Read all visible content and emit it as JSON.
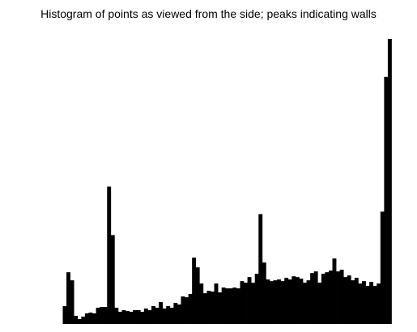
{
  "chart_data": {
    "type": "bar",
    "title": "Histogram of points as viewed from the side; peaks indicating walls",
    "xlabel": "",
    "ylabel": "",
    "axes_visible": false,
    "grid": false,
    "bar_color": "#000000",
    "ylim": [
      0,
      353
    ],
    "values": [
      22,
      64,
      54,
      10,
      6,
      9,
      13,
      14,
      13,
      20,
      21,
      21,
      170,
      110,
      20,
      15,
      17,
      16,
      15,
      17,
      17,
      15,
      19,
      17,
      22,
      20,
      27,
      19,
      22,
      20,
      26,
      24,
      34,
      33,
      37,
      82,
      70,
      50,
      38,
      41,
      40,
      50,
      39,
      45,
      44,
      44,
      45,
      44,
      53,
      51,
      58,
      51,
      62,
      136,
      76,
      55,
      53,
      54,
      55,
      53,
      57,
      55,
      59,
      58,
      56,
      51,
      54,
      63,
      65,
      51,
      62,
      64,
      66,
      81,
      65,
      67,
      58,
      60,
      54,
      57,
      50,
      53,
      47,
      52,
      47,
      50,
      139,
      306,
      353
    ]
  }
}
